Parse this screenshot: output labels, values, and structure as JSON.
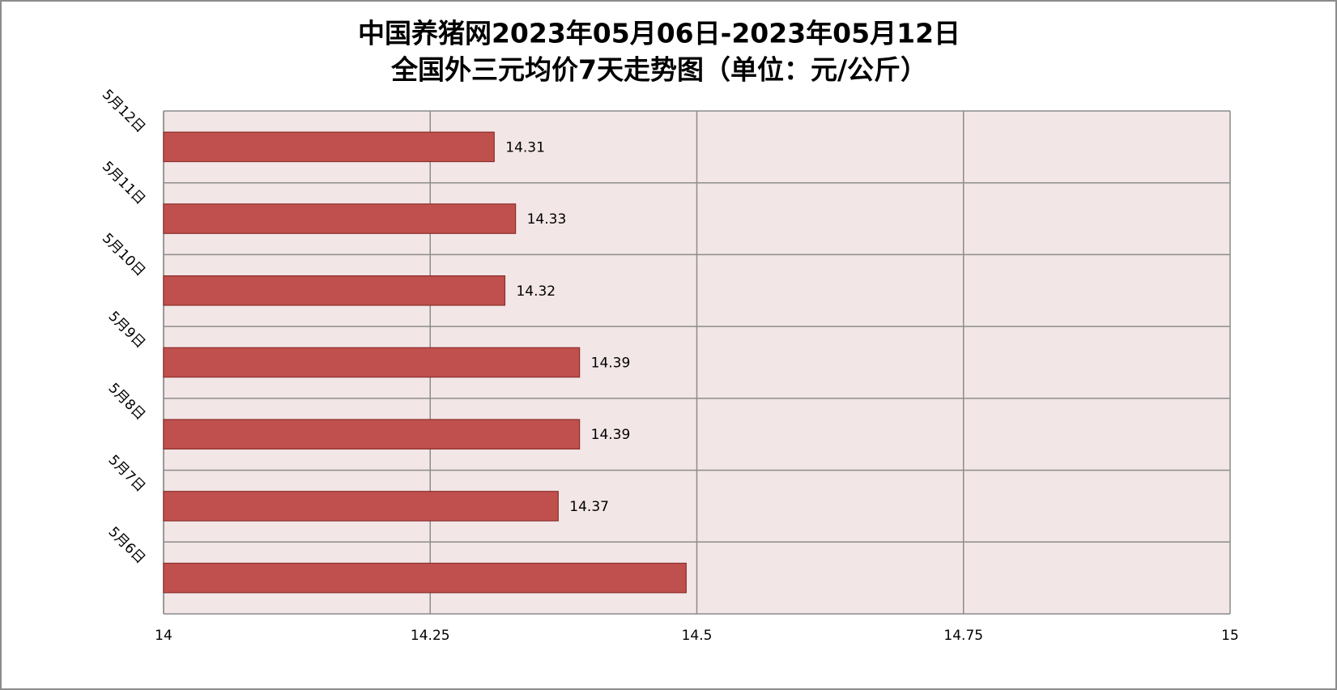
{
  "chart_data": {
    "type": "barh",
    "title": "中国养猪网2023年05月06日-2023年05月12日",
    "subtitle": "全国外三元均价7天走势图（单位：元/公斤）",
    "categories": [
      "5月6日",
      "5月7日",
      "5月8日",
      "5月9日",
      "5月10日",
      "5月11日",
      "5月12日"
    ],
    "values": [
      14.49,
      14.37,
      14.39,
      14.39,
      14.32,
      14.33,
      14.31
    ],
    "value_labels": [
      null,
      "14.37",
      "14.39",
      "14.39",
      "14.32",
      "14.33",
      "14.31"
    ],
    "color": "#c0504d",
    "xlim": [
      14,
      15
    ],
    "xticks": [
      14,
      14.25,
      14.5,
      14.75,
      15
    ],
    "grid": true
  }
}
